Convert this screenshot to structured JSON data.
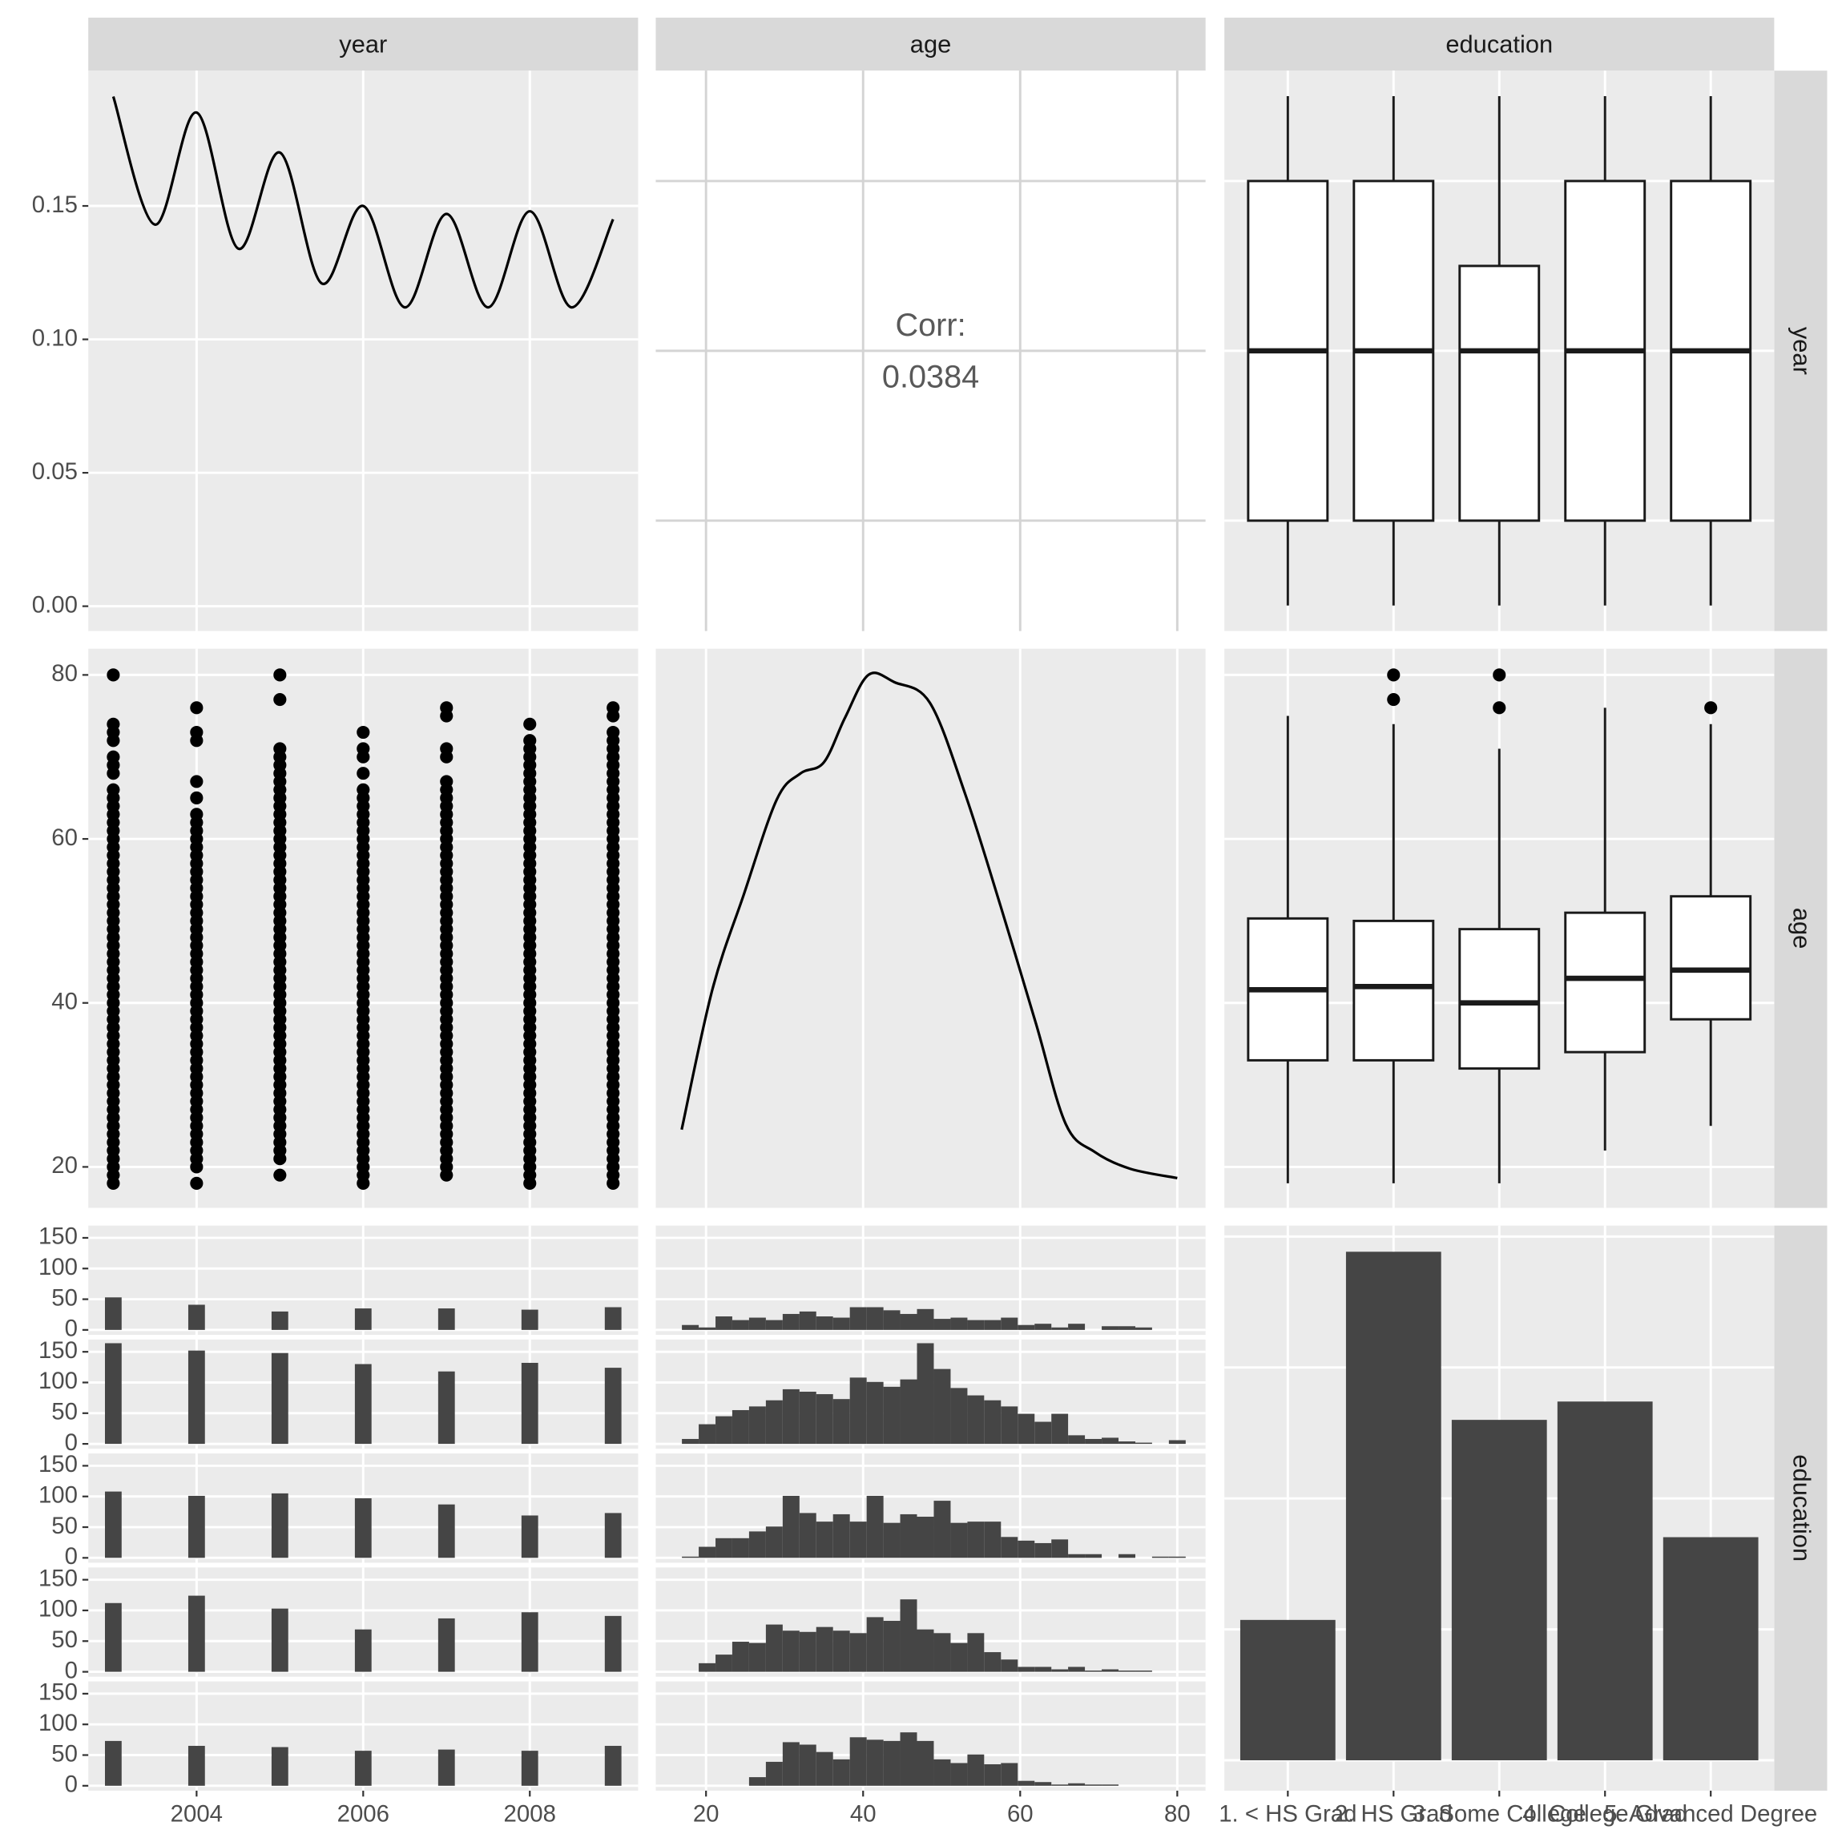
{
  "variables": [
    "year",
    "age",
    "education"
  ],
  "chart_data": [
    {
      "type": "line",
      "color": "#000000",
      "x": [
        2003,
        2003.5,
        2004,
        2004.5,
        2005,
        2005.5,
        2006,
        2006.5,
        2007,
        2007.5,
        2008,
        2008.5,
        2009
      ],
      "values": [
        0.191,
        0.143,
        0.185,
        0.134,
        0.17,
        0.121,
        0.15,
        0.112,
        0.147,
        0.112,
        0.148,
        0.112,
        0.145
      ],
      "xlim": [
        2002.7,
        2009.3
      ],
      "xticks": [
        2004,
        2006,
        2008
      ],
      "ylim": [
        -0.0093,
        0.2007
      ],
      "yticks": [
        {
          "value": 0,
          "label": "0.00"
        },
        0.05,
        {
          "value": 0.1,
          "label": "0.10"
        },
        0.15
      ]
    },
    {
      "type": "correlation",
      "label": "Corr:",
      "value": 0.0384,
      "xlim": [
        13.6,
        83.6
      ],
      "xticks": [
        20,
        40,
        60,
        80
      ],
      "ylim": [
        2002.7,
        2009.3
      ],
      "yticks": [
        2004,
        2006,
        2008
      ]
    },
    {
      "type": "boxplot",
      "ylim": [
        2002.7,
        2009.3
      ],
      "yticks": [
        2004,
        2006,
        2008
      ],
      "boxes": [
        {
          "min": 2003,
          "q1": 2004,
          "median": 2006,
          "q3": 2008,
          "max": 2009,
          "outliers": []
        },
        {
          "min": 2003,
          "q1": 2004,
          "median": 2006,
          "q3": 2008,
          "max": 2009,
          "outliers": []
        },
        {
          "min": 2003,
          "q1": 2004,
          "median": 2006,
          "q3": 2007,
          "max": 2009,
          "outliers": []
        },
        {
          "min": 2003,
          "q1": 2004,
          "median": 2006,
          "q3": 2008,
          "max": 2009,
          "outliers": []
        },
        {
          "min": 2003,
          "q1": 2004,
          "median": 2006,
          "q3": 2008,
          "max": 2009,
          "outliers": []
        }
      ]
    },
    {
      "type": "scatter",
      "color": "#000000",
      "xlim": [
        2002.7,
        2009.3
      ],
      "xticks": [
        2004,
        2006,
        2008
      ],
      "ylim": [
        15,
        83.2
      ],
      "yticks": [
        20,
        40,
        60,
        80
      ],
      "series": [
        {
          "x": 2003,
          "values": [
            18,
            19,
            20,
            21,
            22,
            23,
            24,
            25,
            26,
            27,
            28,
            29,
            30,
            31,
            32,
            33,
            34,
            35,
            36,
            37,
            38,
            39,
            40,
            41,
            42,
            43,
            44,
            45,
            46,
            47,
            48,
            49,
            50,
            51,
            52,
            53,
            54,
            55,
            56,
            57,
            58,
            59,
            60,
            61,
            62,
            63,
            64,
            65,
            66,
            68,
            69,
            70,
            72,
            73,
            74,
            80
          ]
        },
        {
          "x": 2004,
          "values": [
            18,
            20,
            21,
            22,
            23,
            24,
            25,
            26,
            27,
            28,
            29,
            30,
            31,
            32,
            33,
            34,
            35,
            36,
            37,
            38,
            39,
            40,
            41,
            42,
            43,
            44,
            45,
            46,
            47,
            48,
            49,
            50,
            51,
            52,
            53,
            54,
            55,
            56,
            57,
            58,
            59,
            60,
            61,
            62,
            63,
            65,
            67,
            72,
            73,
            76
          ]
        },
        {
          "x": 2005,
          "values": [
            19,
            21,
            22,
            23,
            24,
            25,
            26,
            27,
            28,
            29,
            30,
            31,
            32,
            33,
            34,
            35,
            36,
            37,
            38,
            39,
            40,
            41,
            42,
            43,
            44,
            45,
            46,
            47,
            48,
            49,
            50,
            51,
            52,
            53,
            54,
            55,
            56,
            57,
            58,
            59,
            60,
            61,
            62,
            63,
            64,
            65,
            66,
            67,
            68,
            69,
            70,
            71,
            77,
            80
          ]
        },
        {
          "x": 2006,
          "values": [
            18,
            19,
            20,
            21,
            22,
            23,
            24,
            25,
            26,
            27,
            28,
            29,
            30,
            31,
            32,
            33,
            34,
            35,
            36,
            37,
            38,
            39,
            40,
            41,
            42,
            43,
            44,
            45,
            46,
            47,
            48,
            49,
            50,
            51,
            52,
            53,
            54,
            55,
            56,
            57,
            58,
            59,
            60,
            61,
            62,
            63,
            64,
            65,
            66,
            68,
            70,
            71,
            73
          ]
        },
        {
          "x": 2007,
          "values": [
            19,
            20,
            21,
            22,
            23,
            24,
            25,
            26,
            27,
            28,
            29,
            30,
            31,
            32,
            33,
            34,
            35,
            36,
            37,
            38,
            39,
            40,
            41,
            42,
            43,
            44,
            45,
            46,
            47,
            48,
            49,
            50,
            51,
            52,
            53,
            54,
            55,
            56,
            57,
            58,
            59,
            60,
            61,
            62,
            63,
            64,
            65,
            66,
            67,
            70,
            71,
            75,
            76
          ]
        },
        {
          "x": 2008,
          "values": [
            18,
            19,
            20,
            21,
            22,
            23,
            24,
            25,
            26,
            27,
            28,
            29,
            30,
            31,
            32,
            33,
            34,
            35,
            36,
            37,
            38,
            39,
            40,
            41,
            42,
            43,
            44,
            45,
            46,
            47,
            48,
            49,
            50,
            51,
            52,
            53,
            54,
            55,
            56,
            57,
            58,
            59,
            60,
            61,
            62,
            63,
            64,
            65,
            66,
            67,
            68,
            69,
            70,
            71,
            72,
            74
          ]
        },
        {
          "x": 2009,
          "values": [
            18,
            19,
            20,
            21,
            22,
            23,
            24,
            25,
            26,
            27,
            28,
            29,
            30,
            31,
            32,
            33,
            34,
            35,
            36,
            37,
            38,
            39,
            40,
            41,
            42,
            43,
            44,
            45,
            46,
            47,
            48,
            49,
            50,
            51,
            52,
            53,
            54,
            55,
            56,
            57,
            58,
            59,
            60,
            61,
            62,
            63,
            64,
            65,
            66,
            67,
            68,
            69,
            70,
            71,
            72,
            73,
            75,
            76
          ]
        }
      ]
    },
    {
      "type": "line",
      "color": "#000000",
      "x": [
        16.9,
        20.8,
        24.8,
        29,
        32,
        35,
        37.7,
        40.7,
        44,
        48.5,
        53,
        57.5,
        62,
        65.8,
        69.5,
        74,
        80
      ],
      "values": [
        0.0042,
        0.0117,
        0.0168,
        0.0219,
        0.0233,
        0.0239,
        0.0263,
        0.0286,
        0.0282,
        0.0271,
        0.0222,
        0.0162,
        0.0099,
        0.0045,
        0.003,
        0.0021,
        0.0016
      ],
      "xlim": [
        13.6,
        83.6
      ],
      "xticks": [
        20,
        40,
        60,
        80
      ],
      "ylim": [
        0,
        0.03
      ]
    },
    {
      "type": "boxplot",
      "ylim": [
        15,
        83.2
      ],
      "yticks": [
        20,
        40,
        60,
        80
      ],
      "boxes": [
        {
          "min": 18,
          "q1": 33,
          "median": 41.6,
          "q3": 50.3,
          "max": 75,
          "outliers": []
        },
        {
          "min": 18,
          "q1": 33,
          "median": 42,
          "q3": 50,
          "max": 74,
          "outliers": [
            77,
            80
          ]
        },
        {
          "min": 18,
          "q1": 32,
          "median": 40,
          "q3": 49,
          "max": 71,
          "outliers": [
            76,
            80
          ]
        },
        {
          "min": 22,
          "q1": 34,
          "median": 43,
          "q3": 51,
          "max": 76,
          "outliers": []
        },
        {
          "min": 25,
          "q1": 38,
          "median": 44,
          "q3": 53,
          "max": 74,
          "outliers": [
            76
          ]
        }
      ]
    },
    {
      "type": "histogram",
      "color": "#454545",
      "xlim": [
        2002.7,
        2009.3
      ],
      "xticks": [
        2004,
        2006,
        2008
      ],
      "ylim": [
        -8,
        170
      ],
      "yticks": [
        0,
        50,
        100,
        150
      ],
      "bins": [
        2002.9,
        2003.1,
        2003.3,
        2003.5,
        2003.7,
        2003.9,
        2004.1,
        2004.3,
        2004.5,
        2004.7,
        2004.9,
        2005.1,
        2005.3,
        2005.5,
        2005.7,
        2005.9,
        2006.1,
        2006.3,
        2006.5,
        2006.7,
        2006.9,
        2007.1,
        2007.3,
        2007.5,
        2007.7,
        2007.9,
        2008.1,
        2008.3,
        2008.5,
        2008.7,
        2008.9,
        2009.1
      ],
      "facets": [
        {
          "values": [
            53,
            0,
            0,
            0,
            0,
            41,
            0,
            0,
            0,
            0,
            30,
            0,
            0,
            0,
            0,
            35,
            0,
            0,
            0,
            0,
            35,
            0,
            0,
            0,
            0,
            33,
            0,
            0,
            0,
            0,
            37
          ]
        },
        {
          "values": [
            164,
            0,
            0,
            0,
            0,
            152,
            0,
            0,
            0,
            0,
            148,
            0,
            0,
            0,
            0,
            130,
            0,
            0,
            0,
            0,
            118,
            0,
            0,
            0,
            0,
            132,
            0,
            0,
            0,
            0,
            124
          ]
        },
        {
          "values": [
            108,
            0,
            0,
            0,
            0,
            101,
            0,
            0,
            0,
            0,
            105,
            0,
            0,
            0,
            0,
            97,
            0,
            0,
            0,
            0,
            87,
            0,
            0,
            0,
            0,
            69,
            0,
            0,
            0,
            0,
            73
          ]
        },
        {
          "values": [
            112,
            0,
            0,
            0,
            0,
            124,
            0,
            0,
            0,
            0,
            103,
            0,
            0,
            0,
            0,
            69,
            0,
            0,
            0,
            0,
            87,
            0,
            0,
            0,
            0,
            97,
            0,
            0,
            0,
            0,
            91
          ]
        },
        {
          "values": [
            73,
            0,
            0,
            0,
            0,
            65,
            0,
            0,
            0,
            0,
            63,
            0,
            0,
            0,
            0,
            57,
            0,
            0,
            0,
            0,
            59,
            0,
            0,
            0,
            0,
            57,
            0,
            0,
            0,
            0,
            65
          ]
        }
      ]
    },
    {
      "type": "histogram",
      "color": "#454545",
      "xlim": [
        13.6,
        83.6
      ],
      "xticks": [
        20,
        40,
        60,
        80
      ],
      "ylim": [
        -8,
        170
      ],
      "yticks": [
        0,
        50,
        100,
        150
      ],
      "bins": [
        16.93,
        19.07,
        21.21,
        23.34,
        25.48,
        27.62,
        29.76,
        31.9,
        34.03,
        36.17,
        38.31,
        40.45,
        42.59,
        44.72,
        46.86,
        49,
        51.14,
        53.28,
        55.41,
        57.55,
        59.69,
        61.83,
        63.97,
        66.1,
        68.24,
        70.38,
        72.52,
        74.66,
        76.79,
        78.93,
        81.07
      ],
      "facets": [
        {
          "values": [
            8,
            4,
            22,
            16,
            20,
            16,
            26,
            30,
            22,
            20,
            37,
            37,
            32,
            26,
            34,
            18,
            20,
            16,
            16,
            20,
            8,
            10,
            4,
            10,
            0,
            6,
            6,
            4,
            0,
            0
          ]
        },
        {
          "values": [
            8,
            32,
            45,
            55,
            61,
            71,
            89,
            85,
            81,
            73,
            108,
            101,
            93,
            105,
            164,
            122,
            91,
            79,
            71,
            61,
            49,
            36,
            49,
            14,
            8,
            10,
            4,
            2,
            0,
            6
          ]
        },
        {
          "values": [
            2,
            18,
            32,
            32,
            43,
            51,
            101,
            73,
            59,
            71,
            59,
            101,
            57,
            71,
            67,
            93,
            57,
            59,
            59,
            34,
            28,
            24,
            30,
            6,
            6,
            0,
            6,
            0,
            2,
            2
          ]
        },
        {
          "values": [
            0,
            14,
            28,
            49,
            47,
            77,
            67,
            65,
            73,
            67,
            63,
            89,
            83,
            118,
            69,
            63,
            47,
            63,
            32,
            20,
            8,
            8,
            4,
            8,
            2,
            4,
            2,
            2,
            0,
            0
          ]
        },
        {
          "values": [
            0,
            0,
            0,
            0,
            14,
            39,
            71,
            67,
            55,
            43,
            79,
            75,
            73,
            87,
            73,
            43,
            37,
            51,
            35,
            37,
            8,
            6,
            2,
            4,
            2,
            2,
            0,
            0,
            0,
            0
          ]
        }
      ]
    },
    {
      "type": "bar",
      "color": "#454545",
      "categories": [
        "1. < HS Grad",
        "2. HS Grad",
        "3. Some College",
        "4. College Grad",
        "5. Advanced Degree"
      ],
      "values": [
        268,
        971,
        650,
        685,
        426
      ],
      "ylim": [
        -58,
        1021
      ],
      "yticks": [
        0,
        250,
        500,
        750,
        1000
      ]
    }
  ]
}
